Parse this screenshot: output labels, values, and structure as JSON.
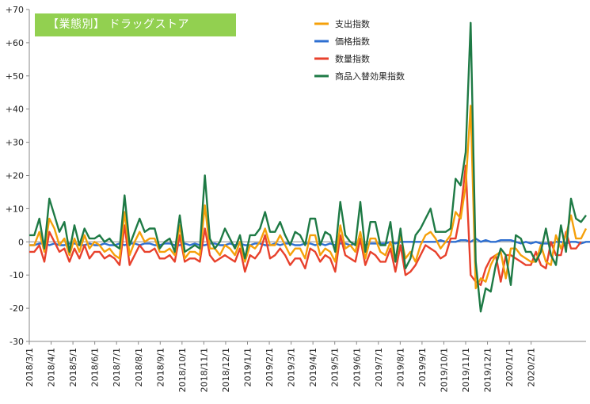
{
  "chart_data": {
    "type": "line",
    "title": "【業態別】 ドラッグストア",
    "xlabel": "",
    "ylabel": "",
    "ylim": [
      -30,
      70
    ],
    "yticks": [
      "+70",
      "+60",
      "+50",
      "+40",
      "+30",
      "+20",
      "+10",
      "0",
      "-10",
      "-20",
      "-30"
    ],
    "ytick_values": [
      70,
      60,
      50,
      40,
      30,
      20,
      10,
      0,
      -10,
      -20,
      -30
    ],
    "xtick_labels": [
      "2018/3/1",
      "2018/4/1",
      "2018/5/1",
      "2018/6/1",
      "2018/7/1",
      "2018/8/1",
      "2018/9/1",
      "2018/10/1",
      "2018/11/1",
      "2018/12/1",
      "2019/1/1",
      "2019/2/1",
      "2019/3/1",
      "2019/4/1",
      "2019/5/1",
      "2019/6/1",
      "2019/7/1",
      "2019/8/1",
      "2019/9/1",
      "2019/10/1",
      "2019/11/1",
      "2019/12/1",
      "2020/1/1",
      "2020/2/1"
    ],
    "weeks_per_month": 4.35,
    "grid": false,
    "legend_position": "top-center",
    "series": [
      {
        "name": "支出指数",
        "color": "#f5a00a",
        "values": [
          -1,
          -1,
          3,
          -3,
          7,
          4,
          -1,
          1,
          -4,
          1,
          -3,
          2,
          -2,
          0,
          -1,
          -3,
          -2,
          -4,
          -5,
          9,
          -4,
          0,
          3,
          0,
          1,
          1,
          -3,
          -3,
          -2,
          -4,
          5,
          -5,
          -3,
          -3,
          -4,
          11,
          -2,
          -2,
          -4,
          -1,
          -2,
          -4,
          0,
          -6,
          -1,
          -2,
          0,
          4,
          -1,
          -1,
          2,
          -1,
          -4,
          -2,
          -2,
          -5,
          2,
          2,
          -4,
          -2,
          -3,
          -6,
          5,
          -2,
          -1,
          -3,
          3,
          -5,
          1,
          1,
          -3,
          -4,
          0,
          -6,
          2,
          -5,
          -3,
          -6,
          -1,
          2,
          3,
          1,
          -2,
          0,
          2,
          9,
          7,
          17,
          41,
          -14,
          -11,
          -12,
          -7,
          -4,
          -3,
          -11,
          -2,
          -2,
          -4,
          -5,
          -6,
          -6,
          -1,
          -6,
          -7,
          2,
          -2,
          2,
          8,
          1,
          1,
          4
        ]
      },
      {
        "name": "価格指数",
        "color": "#2e6fd1",
        "values": [
          -1,
          -1,
          -0.5,
          -0.5,
          -1,
          -0.5,
          -1,
          -1,
          -0.5,
          -0.5,
          -1,
          -1,
          -0.5,
          -1,
          -1,
          -0.5,
          -1,
          -1,
          -0.5,
          -1,
          -0.5,
          -0.5,
          -1,
          -0.5,
          -0.5,
          -1,
          -1,
          -0.5,
          -0.5,
          -1,
          -1,
          -0.5,
          -1,
          -0.5,
          -1,
          -1,
          -0.5,
          -0.5,
          -1,
          -1,
          -0.5,
          -1,
          -0.5,
          -1,
          -1,
          -0.5,
          -0.5,
          -1,
          -1,
          -0.5,
          -1,
          -0.5,
          -0.5,
          -1,
          -1,
          -0.5,
          -0.5,
          -1,
          -0.5,
          -1,
          -0.5,
          -1,
          -0.5,
          -0.5,
          -1,
          -0.5,
          -0.5,
          -1,
          -0.5,
          -0.5,
          -0.5,
          -0.5,
          0,
          -0.5,
          0,
          0,
          0,
          0,
          0,
          0,
          0,
          0,
          0.5,
          0,
          0,
          0,
          0.5,
          0.5,
          0,
          1,
          0,
          0.5,
          0,
          0,
          0.5,
          0.5,
          0.5,
          0,
          -0.5,
          0,
          -0.5,
          0,
          -0.5,
          -0.5,
          -0.5,
          0,
          0,
          -0.5,
          0,
          0,
          -0.5,
          0,
          0
        ]
      },
      {
        "name": "数量指数",
        "color": "#e8412c",
        "values": [
          -3,
          -3,
          -1,
          -6,
          3,
          0,
          -3,
          -2,
          -6,
          -2,
          -5,
          -1,
          -5,
          -3,
          -3,
          -5,
          -4,
          -5,
          -7,
          5,
          -7,
          -4,
          -1,
          -3,
          -3,
          -2,
          -5,
          -5,
          -4,
          -6,
          2,
          -6,
          -5,
          -5,
          -6,
          4,
          -4,
          -6,
          -5,
          -4,
          -5,
          -6,
          -2,
          -9,
          -4,
          -5,
          -3,
          2,
          -5,
          -4,
          -2,
          -4,
          -7,
          -5,
          -5,
          -8,
          -2,
          -3,
          -6,
          -4,
          -5,
          -9,
          2,
          -4,
          -5,
          -6,
          1,
          -7,
          -3,
          -4,
          -6,
          -6,
          -2,
          -9,
          -1,
          -10,
          -9,
          -7,
          -4,
          -1,
          -2,
          -3,
          -5,
          -4,
          1,
          1,
          9,
          23,
          -10,
          -12,
          -13,
          -8,
          -5,
          -4,
          -12,
          -4,
          -4,
          -5,
          -6,
          -7,
          -7,
          -3,
          -7,
          -8,
          0,
          -4,
          -4,
          3,
          -2,
          -2,
          0
        ]
      },
      {
        "name": "商品入替効果指数",
        "color": "#1e7a45",
        "values": [
          2,
          2,
          7,
          -2,
          13,
          8,
          3,
          6,
          -3,
          5,
          -1,
          4,
          1,
          1,
          2,
          0,
          1,
          -1,
          -2,
          14,
          -1,
          3,
          7,
          3,
          4,
          4,
          -2,
          0,
          1,
          -3,
          8,
          -3,
          -2,
          -1,
          -2,
          20,
          1,
          -2,
          0,
          4,
          1,
          -2,
          2,
          -5,
          2,
          2,
          4,
          9,
          3,
          3,
          6,
          2,
          -1,
          3,
          2,
          -1,
          7,
          7,
          -1,
          3,
          2,
          -3,
          12,
          2,
          0,
          -1,
          12,
          -3,
          6,
          6,
          -1,
          -1,
          6,
          -6,
          4,
          -8,
          -5,
          2,
          4,
          7,
          10,
          3,
          3,
          3,
          4,
          19,
          17,
          27,
          66,
          -6,
          -21,
          -14,
          -15,
          -7,
          -2,
          -4,
          -13,
          2,
          1,
          -3,
          -3,
          -6,
          -3,
          4,
          -4,
          -7,
          5,
          -3,
          13,
          7,
          6,
          8
        ]
      }
    ]
  }
}
